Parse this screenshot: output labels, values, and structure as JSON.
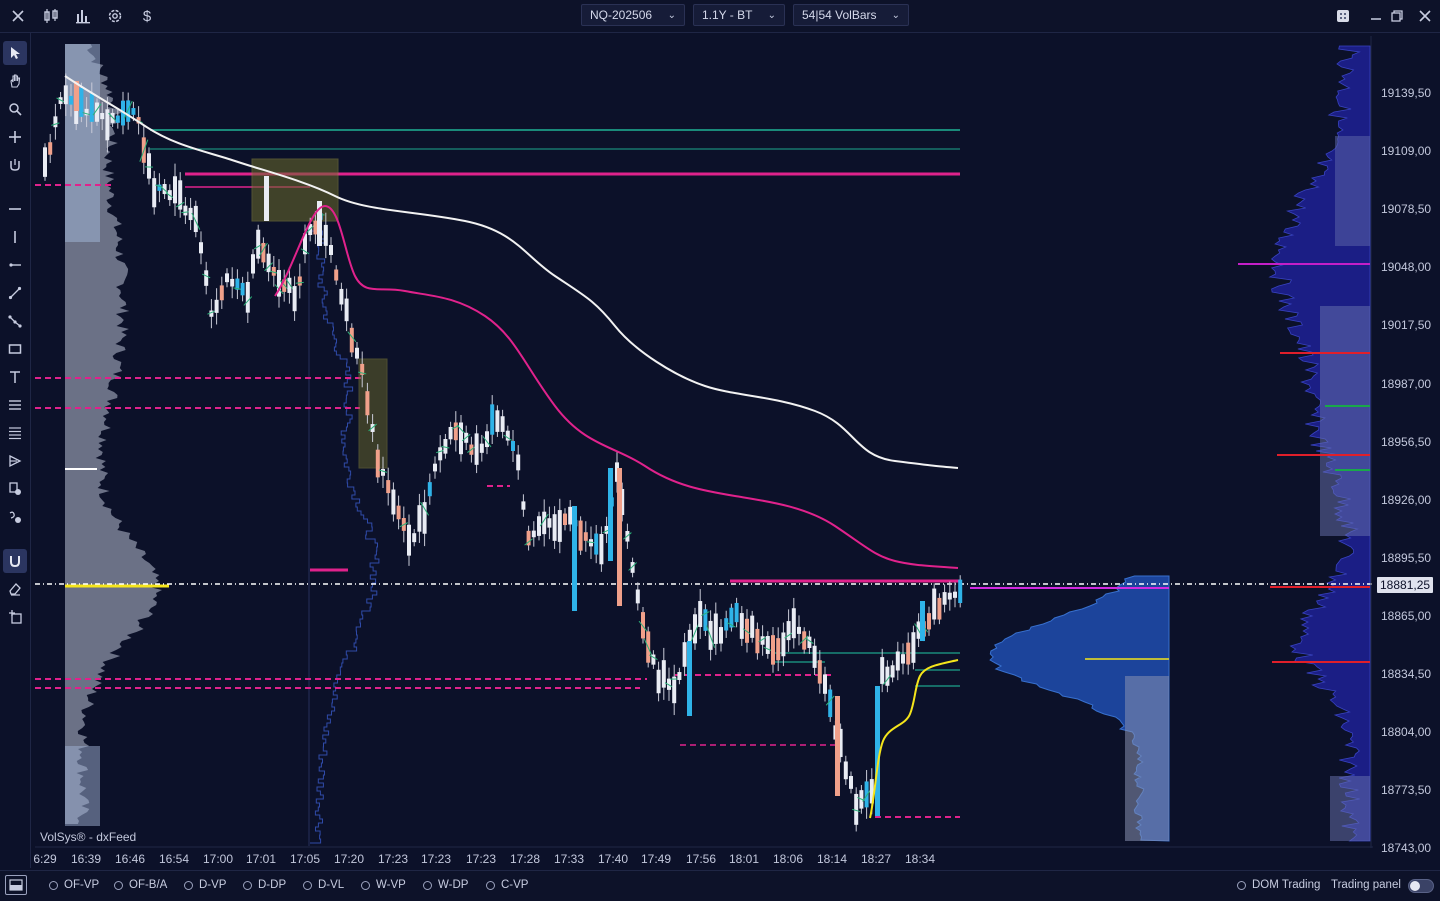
{
  "topbar": {
    "symbol": "NQ-202506",
    "timeframe": "1.1Y - BT",
    "bar_type": "54|54 VolBars",
    "icons": [
      "close-icon",
      "candlestick-icon",
      "bar-chart-icon",
      "settings-icon",
      "dollar-icon"
    ],
    "window_icons": [
      "layout-icon",
      "restore-icon",
      "close-window-icon"
    ]
  },
  "left_tools": [
    "cursor-icon",
    "hand-icon",
    "zoom-icon",
    "crosshair-icon",
    "magnet-cursor-icon",
    "horizontal-line-icon",
    "vertical-line-icon",
    "ray-icon",
    "trend-line-icon",
    "polyline-icon",
    "rectangle-icon",
    "text-icon",
    "fibonacci-icon",
    "list-icon",
    "arrow-tool-icon",
    "price-tag-icon",
    "volume-tag-icon",
    "magnet-icon",
    "eraser-icon",
    "add-layer-icon"
  ],
  "chart": {
    "watermark": "VolSys® - dxFeed",
    "current_price": "18881,25",
    "price_labels": [
      "19139,50",
      "19109,00",
      "19078,50",
      "19048,00",
      "19017,50",
      "18987,00",
      "18956,50",
      "18926,00",
      "18895,50",
      "18865,00",
      "18834,50",
      "18804,00",
      "18773,50",
      "18743,00"
    ],
    "time_labels": [
      "6:29",
      "16:39",
      "16:46",
      "16:54",
      "17:00",
      "17:01",
      "17:05",
      "17:20",
      "17:23",
      "17:23",
      "17:23",
      "17:28",
      "17:33",
      "17:40",
      "17:49",
      "17:56",
      "18:01",
      "18:06",
      "18:14",
      "18:27",
      "18:34"
    ],
    "colors": {
      "background": "#0c1129",
      "vwap": "#f2f2f2",
      "pink_line": "#e0228c",
      "yellow_line": "#f5e51b",
      "bull_candle": "#2fb3e8",
      "bear_candle": "#f0a08a",
      "volume_profile": "#8e93a8",
      "dom_profile": "#1c1f8a",
      "teal_line": "#1a8a7a"
    }
  },
  "bottombar": {
    "indicators": [
      "OF-VP",
      "OF-B/A",
      "D-VP",
      "D-DP",
      "D-VL",
      "W-VP",
      "W-DP",
      "C-VP"
    ],
    "dom_trading": "DOM Trading",
    "trading_panel": "Trading panel"
  }
}
